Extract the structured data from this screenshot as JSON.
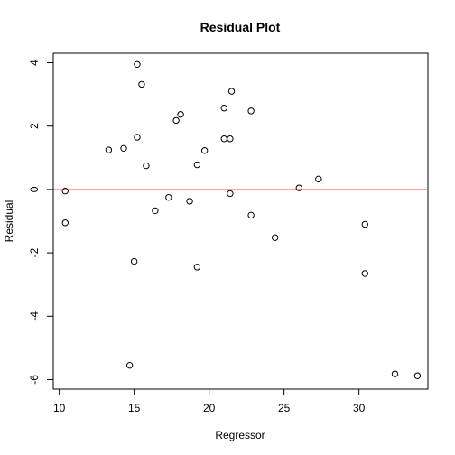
{
  "chart_data": {
    "type": "scatter",
    "title": "Residual Plot",
    "xlabel": "Regressor",
    "ylabel": "Residual",
    "xlim": [
      9.6,
      34.6
    ],
    "ylim": [
      -6.3,
      4.3
    ],
    "xticks": [
      10,
      15,
      20,
      25,
      30
    ],
    "yticks": [
      -6,
      -4,
      -2,
      0,
      2,
      4
    ],
    "reference_line": {
      "y": 0,
      "color": "#ff6b6b"
    },
    "point_color": "#000000",
    "grid": false,
    "points": [
      {
        "x": 10.4,
        "y": -0.05
      },
      {
        "x": 10.4,
        "y": -1.05
      },
      {
        "x": 13.3,
        "y": 1.25
      },
      {
        "x": 14.3,
        "y": 1.3
      },
      {
        "x": 14.7,
        "y": -5.55
      },
      {
        "x": 15.0,
        "y": -2.27
      },
      {
        "x": 15.2,
        "y": 1.65
      },
      {
        "x": 15.2,
        "y": 3.95
      },
      {
        "x": 15.5,
        "y": 3.32
      },
      {
        "x": 15.8,
        "y": 0.75
      },
      {
        "x": 16.4,
        "y": -0.67
      },
      {
        "x": 17.3,
        "y": -0.25
      },
      {
        "x": 17.8,
        "y": 2.18
      },
      {
        "x": 18.1,
        "y": 2.37
      },
      {
        "x": 18.7,
        "y": -0.37
      },
      {
        "x": 19.2,
        "y": 0.78
      },
      {
        "x": 19.2,
        "y": -2.45
      },
      {
        "x": 19.7,
        "y": 1.23
      },
      {
        "x": 21.0,
        "y": 2.57
      },
      {
        "x": 21.0,
        "y": 1.6
      },
      {
        "x": 21.4,
        "y": 1.6
      },
      {
        "x": 21.4,
        "y": -0.13
      },
      {
        "x": 21.5,
        "y": 3.1
      },
      {
        "x": 22.8,
        "y": 2.48
      },
      {
        "x": 22.8,
        "y": -0.81
      },
      {
        "x": 24.4,
        "y": -1.52
      },
      {
        "x": 26.0,
        "y": 0.05
      },
      {
        "x": 27.3,
        "y": 0.33
      },
      {
        "x": 30.4,
        "y": -1.1
      },
      {
        "x": 30.4,
        "y": -2.65
      },
      {
        "x": 32.4,
        "y": -5.82
      },
      {
        "x": 33.9,
        "y": -5.88
      }
    ]
  }
}
